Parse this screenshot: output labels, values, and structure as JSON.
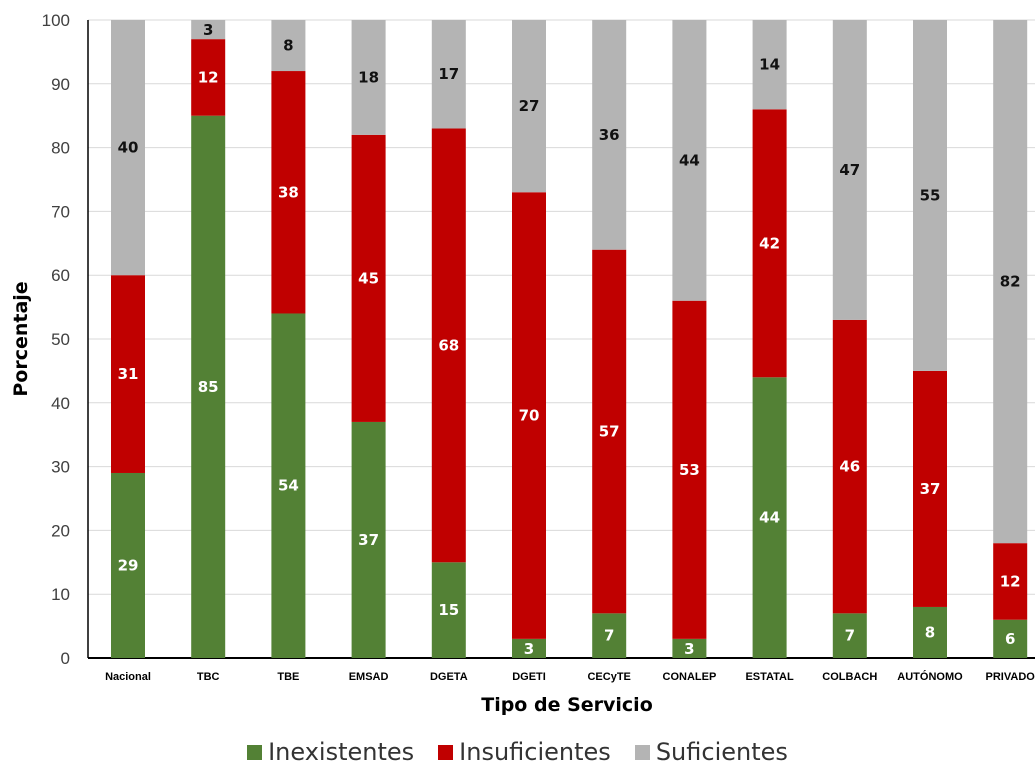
{
  "chart_data": {
    "type": "bar",
    "stacked": true,
    "xlabel": "Tipo de Servicio",
    "ylabel": "Porcentaje",
    "ylim": [
      0,
      100
    ],
    "yticks": [
      0,
      10,
      20,
      30,
      40,
      50,
      60,
      70,
      80,
      90,
      100
    ],
    "grid": true,
    "legend_position": "bottom",
    "categories": [
      "Nacional",
      "TBC",
      "TBE",
      "EMSAD",
      "DGETA",
      "DGETI",
      "CECyTE",
      "CONALEP",
      "ESTATAL",
      "COLBACH",
      "AUTÓNOMO",
      "PRIVADO"
    ],
    "series": [
      {
        "name": "Inexistentes",
        "color": "#538135",
        "label_color": "#ffffff",
        "values": [
          29,
          85,
          54,
          37,
          15,
          3,
          7,
          3,
          44,
          7,
          8,
          6
        ]
      },
      {
        "name": "Insuficientes",
        "color": "#c00000",
        "label_color": "#ffffff",
        "values": [
          31,
          12,
          38,
          45,
          68,
          70,
          57,
          53,
          42,
          46,
          37,
          12
        ]
      },
      {
        "name": "Suficientes",
        "color": "#b4b4b4",
        "label_color": "#111111",
        "values": [
          40,
          3,
          8,
          18,
          17,
          27,
          36,
          44,
          14,
          47,
          55,
          82
        ]
      }
    ]
  }
}
